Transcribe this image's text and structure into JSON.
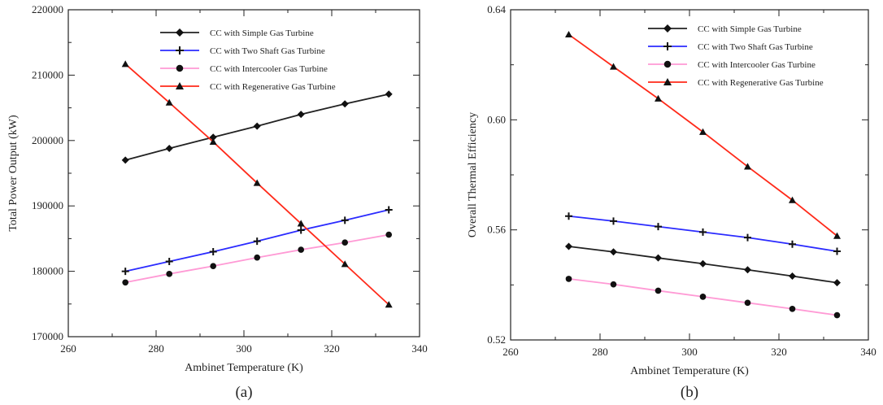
{
  "chart_data": [
    {
      "type": "line",
      "caption": "(a)",
      "xlabel": "Ambinet Temperature (K)",
      "ylabel": "Total Power Output (kW)",
      "xlim": [
        260,
        340
      ],
      "ylim": [
        170000,
        220000
      ],
      "xticks": [
        260,
        280,
        300,
        320,
        340
      ],
      "xtick_labels": [
        "260",
        "280",
        "300",
        "320",
        "340"
      ],
      "yticks": [
        170000,
        180000,
        190000,
        200000,
        210000,
        220000
      ],
      "ytick_labels": [
        "170000",
        "180000",
        "190000",
        "200000",
        "210000",
        "220000"
      ],
      "legend_position": "top-right",
      "x": [
        273,
        283,
        293,
        303,
        313,
        323,
        333
      ],
      "series": [
        {
          "name": "CC with Simple Gas Turbine",
          "color": "#222222",
          "marker": "diamond",
          "values": [
            197000,
            198800,
            200500,
            202200,
            204000,
            205600,
            207100
          ]
        },
        {
          "name": "CC with Two Shaft Gas Turbine",
          "color": "#2b2bff",
          "marker": "plus",
          "values": [
            180000,
            181500,
            183000,
            184600,
            186300,
            187800,
            189400
          ]
        },
        {
          "name": "CC with Intercooler Gas Turbine",
          "color": "#ff9ad5",
          "marker": "circle",
          "values": [
            178300,
            179600,
            180800,
            182100,
            183300,
            184400,
            185600
          ]
        },
        {
          "name": "CC with Regenerative Gas Turbine",
          "color": "#ff2a1a",
          "marker": "triangle",
          "values": [
            211700,
            205800,
            199800,
            193500,
            187300,
            181100,
            174900
          ]
        }
      ]
    },
    {
      "type": "line",
      "caption": "(b)",
      "xlabel": "Ambinet Temperature (K)",
      "ylabel": "Overall Thermal Efficiency",
      "xlim": [
        260,
        340
      ],
      "ylim": [
        0.52,
        0.64
      ],
      "xticks": [
        260,
        280,
        300,
        320,
        340
      ],
      "xtick_labels": [
        "260",
        "280",
        "300",
        "320",
        "340"
      ],
      "yticks": [
        0.52,
        0.56,
        0.6,
        0.64
      ],
      "ytick_labels": [
        "0.52",
        "0.56",
        "0.60",
        "0.64"
      ],
      "legend_position": "top-right",
      "x": [
        273,
        283,
        293,
        303,
        313,
        323,
        333
      ],
      "series": [
        {
          "name": "CC with Simple Gas Turbine",
          "color": "#222222",
          "marker": "diamond",
          "values": [
            0.554,
            0.552,
            0.5498,
            0.5477,
            0.5455,
            0.5432,
            0.5408
          ]
        },
        {
          "name": "CC with Two Shaft Gas Turbine",
          "color": "#2b2bff",
          "marker": "plus",
          "values": [
            0.565,
            0.5632,
            0.5612,
            0.5592,
            0.5572,
            0.5548,
            0.5522
          ]
        },
        {
          "name": "CC with Intercooler Gas Turbine",
          "color": "#ff9ad5",
          "marker": "circle",
          "values": [
            0.5422,
            0.5402,
            0.5379,
            0.5357,
            0.5335,
            0.5313,
            0.529
          ]
        },
        {
          "name": "CC with Regenerative Gas Turbine",
          "color": "#ff2a1a",
          "marker": "triangle",
          "values": [
            0.631,
            0.6193,
            0.6077,
            0.5956,
            0.583,
            0.5708,
            0.5578
          ]
        }
      ]
    }
  ]
}
